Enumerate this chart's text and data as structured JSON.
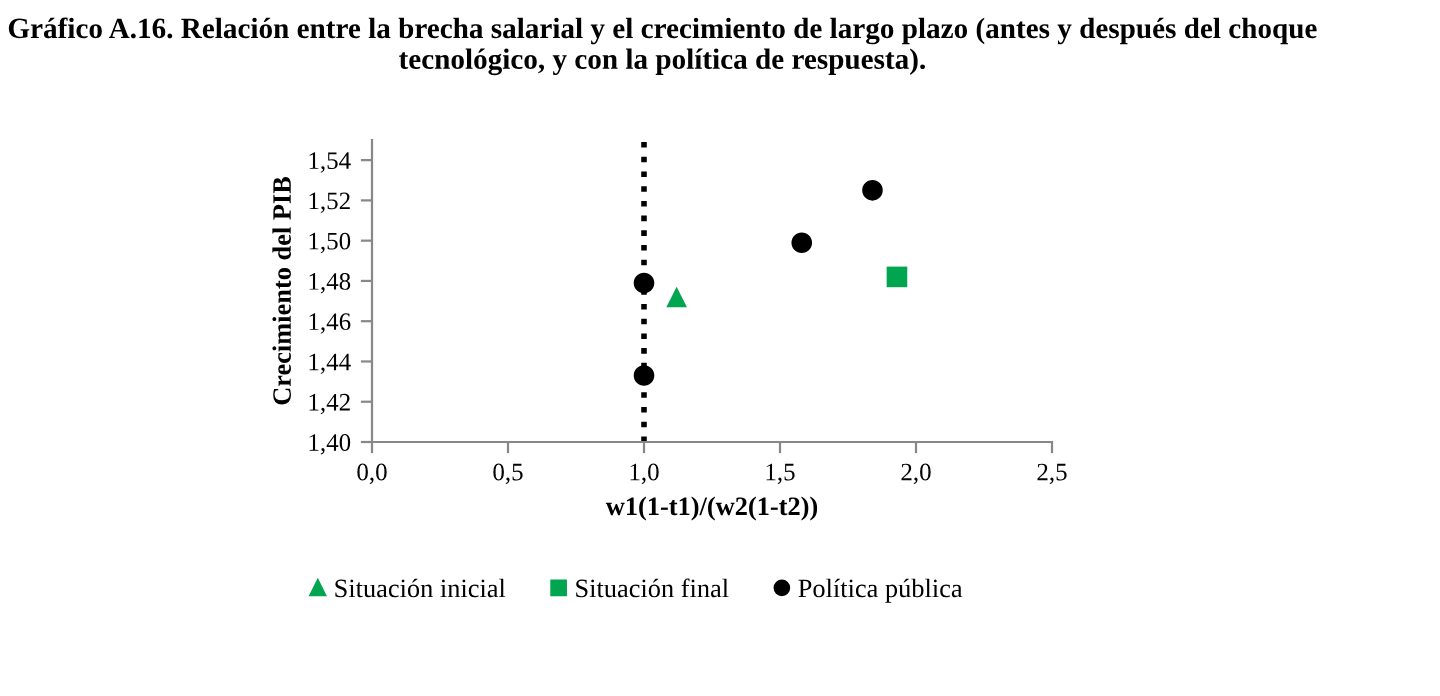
{
  "chart_data": {
    "type": "scatter",
    "title": "Gráfico A.16. Relación entre la brecha salarial y el crecimiento de largo plazo (antes y después del choque tecnológico, y con la política de respuesta).",
    "xlabel": "w1(1-t1)/(w2(1-t2))",
    "ylabel": "Crecimiento del PIB",
    "series": [
      {
        "name": "Situación inicial",
        "color": "#00a550",
        "marker": "triangle",
        "x": [
          1.12
        ],
        "values": [
          1.472
        ]
      },
      {
        "name": "Situación final",
        "color": "#00a550",
        "marker": "square",
        "x": [
          1.93
        ],
        "values": [
          1.482
        ]
      },
      {
        "name": "Política pública",
        "color": "#000000",
        "marker": "circle",
        "x": [
          1.0,
          1.0,
          1.58,
          1.84
        ],
        "values": [
          1.479,
          1.433,
          1.499,
          1.525
        ]
      }
    ],
    "xlim": [
      0,
      2.5
    ],
    "ylim": [
      1.4,
      1.55
    ],
    "xticks": [
      {
        "value": 0,
        "label": "0,0"
      },
      {
        "value": 0.5,
        "label": "0,5"
      },
      {
        "value": 1,
        "label": "1,0"
      },
      {
        "value": 1.5,
        "label": "1,5"
      },
      {
        "value": 2,
        "label": "2,0"
      },
      {
        "value": 2.5,
        "label": "2,5"
      }
    ],
    "yticks": [
      {
        "value": 1.4,
        "label": "1,40"
      },
      {
        "value": 1.42,
        "label": "1,42"
      },
      {
        "value": 1.44,
        "label": "1,44"
      },
      {
        "value": 1.46,
        "label": "1,46"
      },
      {
        "value": 1.48,
        "label": "1,48"
      },
      {
        "value": 1.5,
        "label": "1,50"
      },
      {
        "value": 1.52,
        "label": "1,52"
      },
      {
        "value": 1.54,
        "label": "1,54"
      }
    ],
    "ref_lines": [
      {
        "axis": "x",
        "value": 1.0,
        "color": "#000000",
        "line_style": "dotted"
      }
    ],
    "grid": false,
    "legend": "bottom"
  }
}
